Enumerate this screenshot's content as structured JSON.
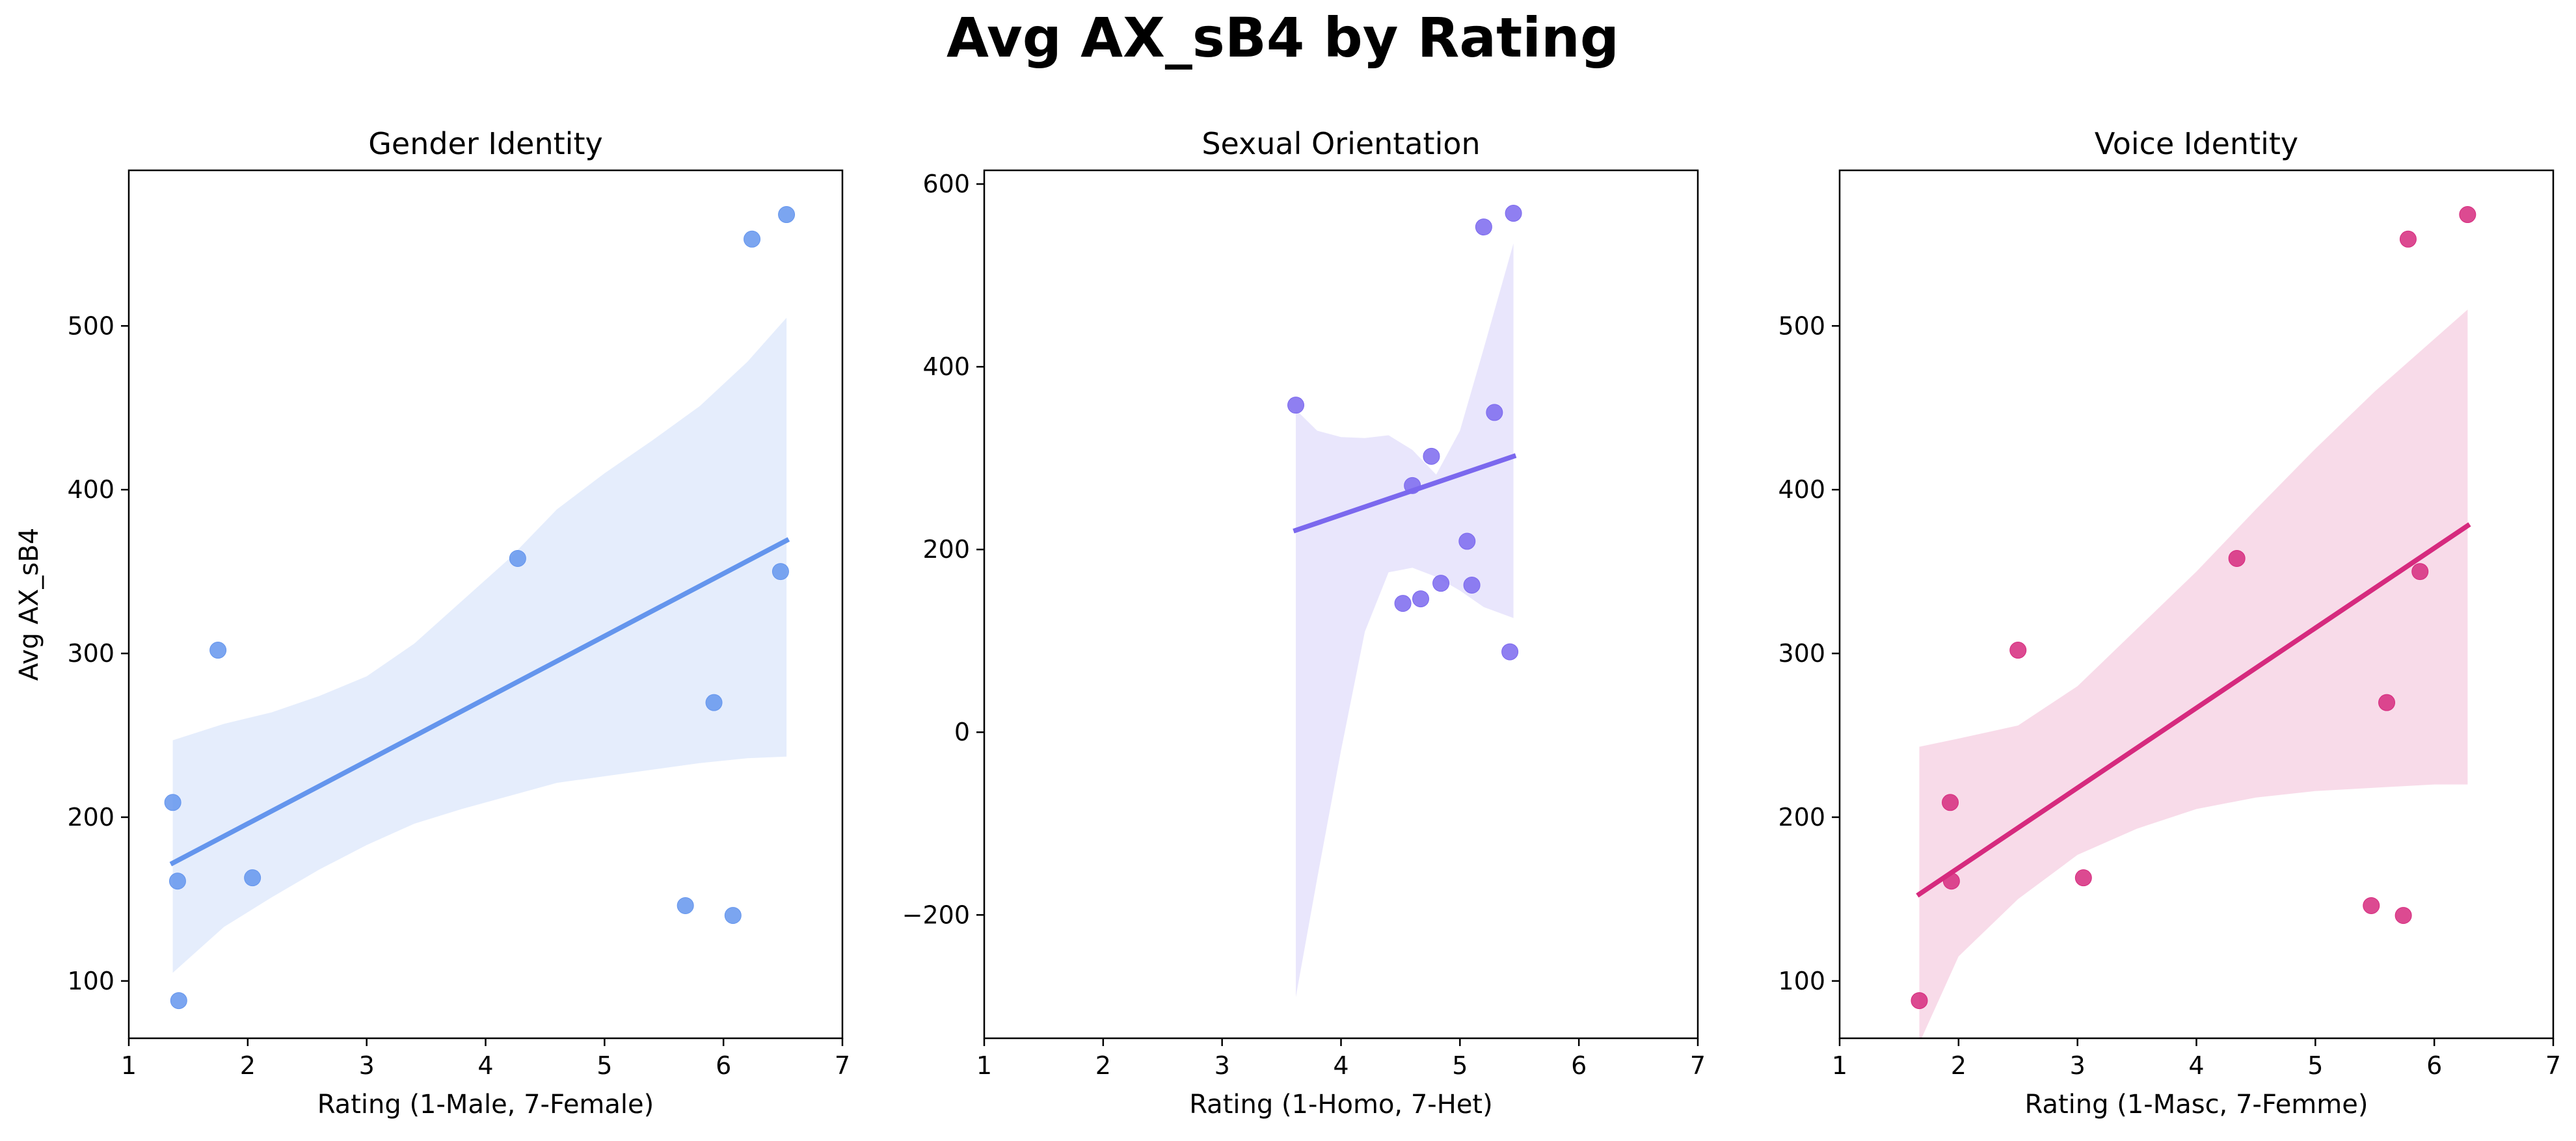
{
  "figure": {
    "title": "Avg AX_sB4 by Rating"
  },
  "chart_data": [
    {
      "type": "scatter",
      "title": "Gender Identity",
      "xlabel": "Rating (1-Male, 7-Female)",
      "ylabel": "Avg AX_sB4",
      "xlim": [
        1,
        7
      ],
      "ylim": [
        65,
        595
      ],
      "xticks": [
        "1",
        "2",
        "3",
        "4",
        "5",
        "6",
        "7"
      ],
      "yticks": [
        "100",
        "200",
        "300",
        "400",
        "500"
      ],
      "color": "#6495ED",
      "grid": false,
      "points": [
        {
          "x": 1.37,
          "y": 209
        },
        {
          "x": 1.41,
          "y": 161
        },
        {
          "x": 1.42,
          "y": 88
        },
        {
          "x": 1.75,
          "y": 302
        },
        {
          "x": 2.04,
          "y": 163
        },
        {
          "x": 4.27,
          "y": 358
        },
        {
          "x": 5.68,
          "y": 146
        },
        {
          "x": 5.92,
          "y": 270
        },
        {
          "x": 6.08,
          "y": 140
        },
        {
          "x": 6.24,
          "y": 553
        },
        {
          "x": 6.48,
          "y": 350
        },
        {
          "x": 6.53,
          "y": 568
        }
      ],
      "regression_line": {
        "x": [
          1.37,
          6.53
        ],
        "y": [
          172,
          369
        ]
      },
      "confidence_band": {
        "x": [
          1.37,
          1.8,
          2.2,
          2.6,
          3.0,
          3.4,
          3.8,
          4.2,
          4.6,
          5.0,
          5.4,
          5.8,
          6.2,
          6.53
        ],
        "upper": [
          247,
          257,
          264,
          274,
          286,
          306,
          332,
          358,
          388,
          410,
          430,
          451,
          478,
          505
        ],
        "lower": [
          105,
          133,
          151,
          168,
          183,
          196,
          205,
          213,
          221,
          225,
          229,
          233,
          236,
          237
        ]
      }
    },
    {
      "type": "scatter",
      "title": "Sexual Orientation",
      "xlabel": "Rating (1-Homo, 7-Het)",
      "ylabel": "",
      "xlim": [
        1,
        7
      ],
      "ylim": [
        -335,
        615
      ],
      "xticks": [
        "1",
        "2",
        "3",
        "4",
        "5",
        "6",
        "7"
      ],
      "yticks": [
        "−200",
        "0",
        "200",
        "400",
        "600"
      ],
      "color": "#7B68EE",
      "grid": false,
      "points": [
        {
          "x": 3.62,
          "y": 358
        },
        {
          "x": 4.52,
          "y": 141
        },
        {
          "x": 4.6,
          "y": 270
        },
        {
          "x": 4.67,
          "y": 146
        },
        {
          "x": 4.76,
          "y": 302
        },
        {
          "x": 4.84,
          "y": 163
        },
        {
          "x": 5.06,
          "y": 209
        },
        {
          "x": 5.1,
          "y": 161
        },
        {
          "x": 5.2,
          "y": 553
        },
        {
          "x": 5.29,
          "y": 350
        },
        {
          "x": 5.42,
          "y": 88
        },
        {
          "x": 5.45,
          "y": 568
        }
      ],
      "regression_line": {
        "x": [
          3.62,
          5.45
        ],
        "y": [
          221,
          302
        ]
      },
      "confidence_band": {
        "x": [
          3.62,
          3.8,
          4.0,
          4.2,
          4.4,
          4.6,
          4.8,
          5.0,
          5.2,
          5.45
        ],
        "upper": [
          353,
          330,
          323,
          322,
          325,
          309,
          282,
          330,
          420,
          535
        ],
        "lower": [
          -290,
          -160,
          -20,
          110,
          175,
          180,
          170,
          155,
          137,
          125
        ]
      }
    },
    {
      "type": "scatter",
      "title": "Voice Identity",
      "xlabel": "Rating (1-Masc, 7-Femme)",
      "ylabel": "",
      "xlim": [
        1,
        7
      ],
      "ylim": [
        65,
        595
      ],
      "xticks": [
        "1",
        "2",
        "3",
        "4",
        "5",
        "6",
        "7"
      ],
      "yticks": [
        "100",
        "200",
        "300",
        "400",
        "500"
      ],
      "color": "#D62A7E",
      "grid": false,
      "points": [
        {
          "x": 1.67,
          "y": 88
        },
        {
          "x": 1.93,
          "y": 209
        },
        {
          "x": 1.94,
          "y": 161
        },
        {
          "x": 2.5,
          "y": 302
        },
        {
          "x": 3.05,
          "y": 163
        },
        {
          "x": 4.34,
          "y": 358
        },
        {
          "x": 5.47,
          "y": 146
        },
        {
          "x": 5.6,
          "y": 270
        },
        {
          "x": 5.74,
          "y": 140
        },
        {
          "x": 5.78,
          "y": 553
        },
        {
          "x": 5.88,
          "y": 350
        },
        {
          "x": 6.28,
          "y": 568
        }
      ],
      "regression_line": {
        "x": [
          1.67,
          6.28
        ],
        "y": [
          153,
          378
        ]
      },
      "confidence_band": {
        "x": [
          1.67,
          2.0,
          2.5,
          3.0,
          3.5,
          4.0,
          4.5,
          5.0,
          5.5,
          6.0,
          6.28
        ],
        "upper": [
          243,
          248,
          256,
          280,
          315,
          350,
          388,
          425,
          460,
          492,
          510
        ],
        "lower": [
          62,
          115,
          150,
          177,
          193,
          205,
          212,
          216,
          218,
          220,
          220
        ]
      }
    }
  ]
}
